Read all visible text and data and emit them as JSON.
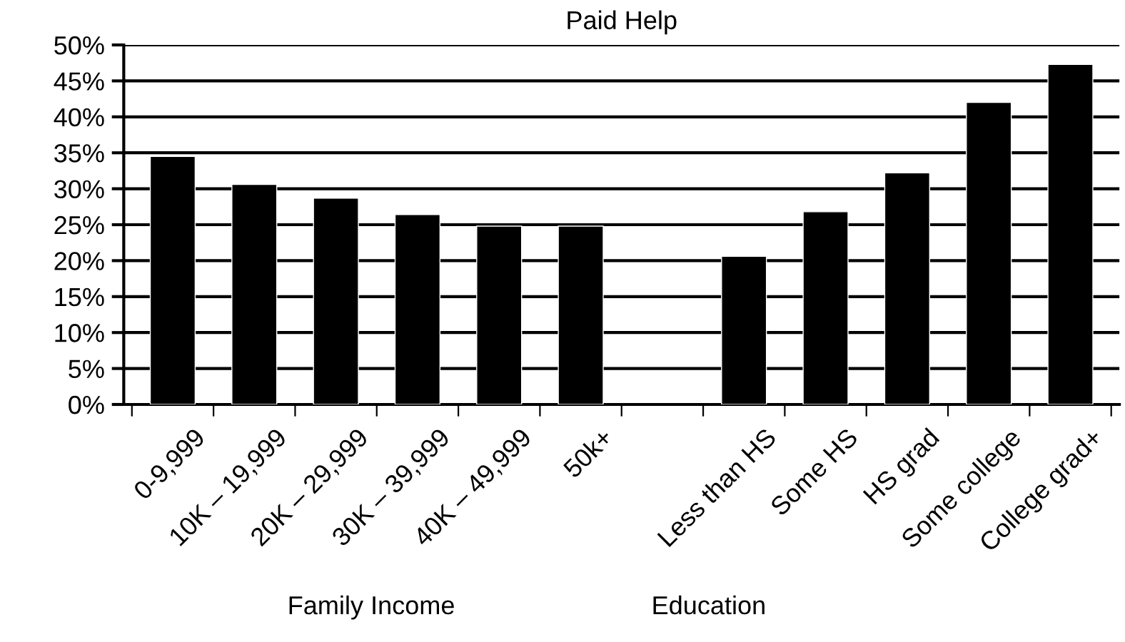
{
  "chart_data": {
    "type": "bar",
    "title": "Paid Help",
    "categories": [
      "0-9,999",
      "10K – 19,999",
      "20K – 29,999",
      "30K – 39,999",
      "40K – 49,999",
      "50k+",
      null,
      "Less than HS",
      "Some HS",
      "HS grad",
      "Some college",
      "College grad+"
    ],
    "values": [
      34.5,
      30.6,
      28.7,
      26.4,
      24.8,
      24.8,
      null,
      20.6,
      26.8,
      32.2,
      42.0,
      47.3
    ],
    "color": "#000000",
    "ylim": [
      0,
      50
    ],
    "yticks": [
      {
        "value": 0,
        "label": "0%"
      },
      {
        "value": 5,
        "label": "5%"
      },
      {
        "value": 10,
        "label": "10%"
      },
      {
        "value": 15,
        "label": "15%"
      },
      {
        "value": 20,
        "label": "20%"
      },
      {
        "value": 25,
        "label": "25%"
      },
      {
        "value": 30,
        "label": "30%"
      },
      {
        "value": 35,
        "label": "35%"
      },
      {
        "value": 40,
        "label": "40%"
      },
      {
        "value": 45,
        "label": "45%"
      },
      {
        "value": 50,
        "label": "50%"
      }
    ],
    "grid": "y",
    "annotations": [
      "Family Income",
      "Education"
    ]
  }
}
